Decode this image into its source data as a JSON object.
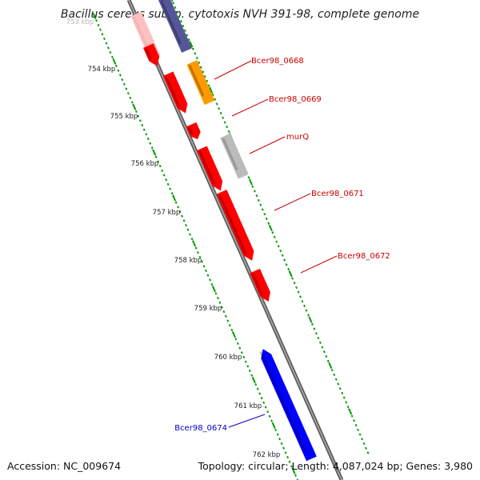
{
  "title": "Bacillus cereus subsp. cytotoxis NVH 391-98, complete genome",
  "footer": {
    "accession": "Accession: NC_009674",
    "summary": "Topology: circular; Length: 4,087,024 bp; Genes: 3,980"
  },
  "scale": {
    "kbp_label_partial": "753 kbp",
    "kbp_labels": [
      "754 kbp",
      "755 kbp",
      "756 kbp",
      "757 kbp",
      "758 kbp",
      "759 kbp",
      "760 kbp",
      "761 kbp",
      "762 kbp"
    ]
  },
  "colors": {
    "cds_red": "#ff0000",
    "cds_orange": "#ff9900",
    "cds_gray": "#bbbbbb",
    "cds_blue": "#0000ff",
    "cds_purple": "#555599",
    "cds_pink": "#ffc0c0",
    "tick_green": "#009900",
    "backbone": "#808080"
  },
  "gene_labels": [
    {
      "name": "Bcer98_0668",
      "color": "#cc0000"
    },
    {
      "name": "Bcer98_0669",
      "color": "#cc0000"
    },
    {
      "name": "murQ",
      "color": "#cc0000"
    },
    {
      "name": "Bcer98_0671",
      "color": "#cc0000"
    },
    {
      "name": "Bcer98_0672",
      "color": "#cc0000"
    },
    {
      "name": "Bcer98_0674",
      "color": "#0000cc"
    }
  ]
}
